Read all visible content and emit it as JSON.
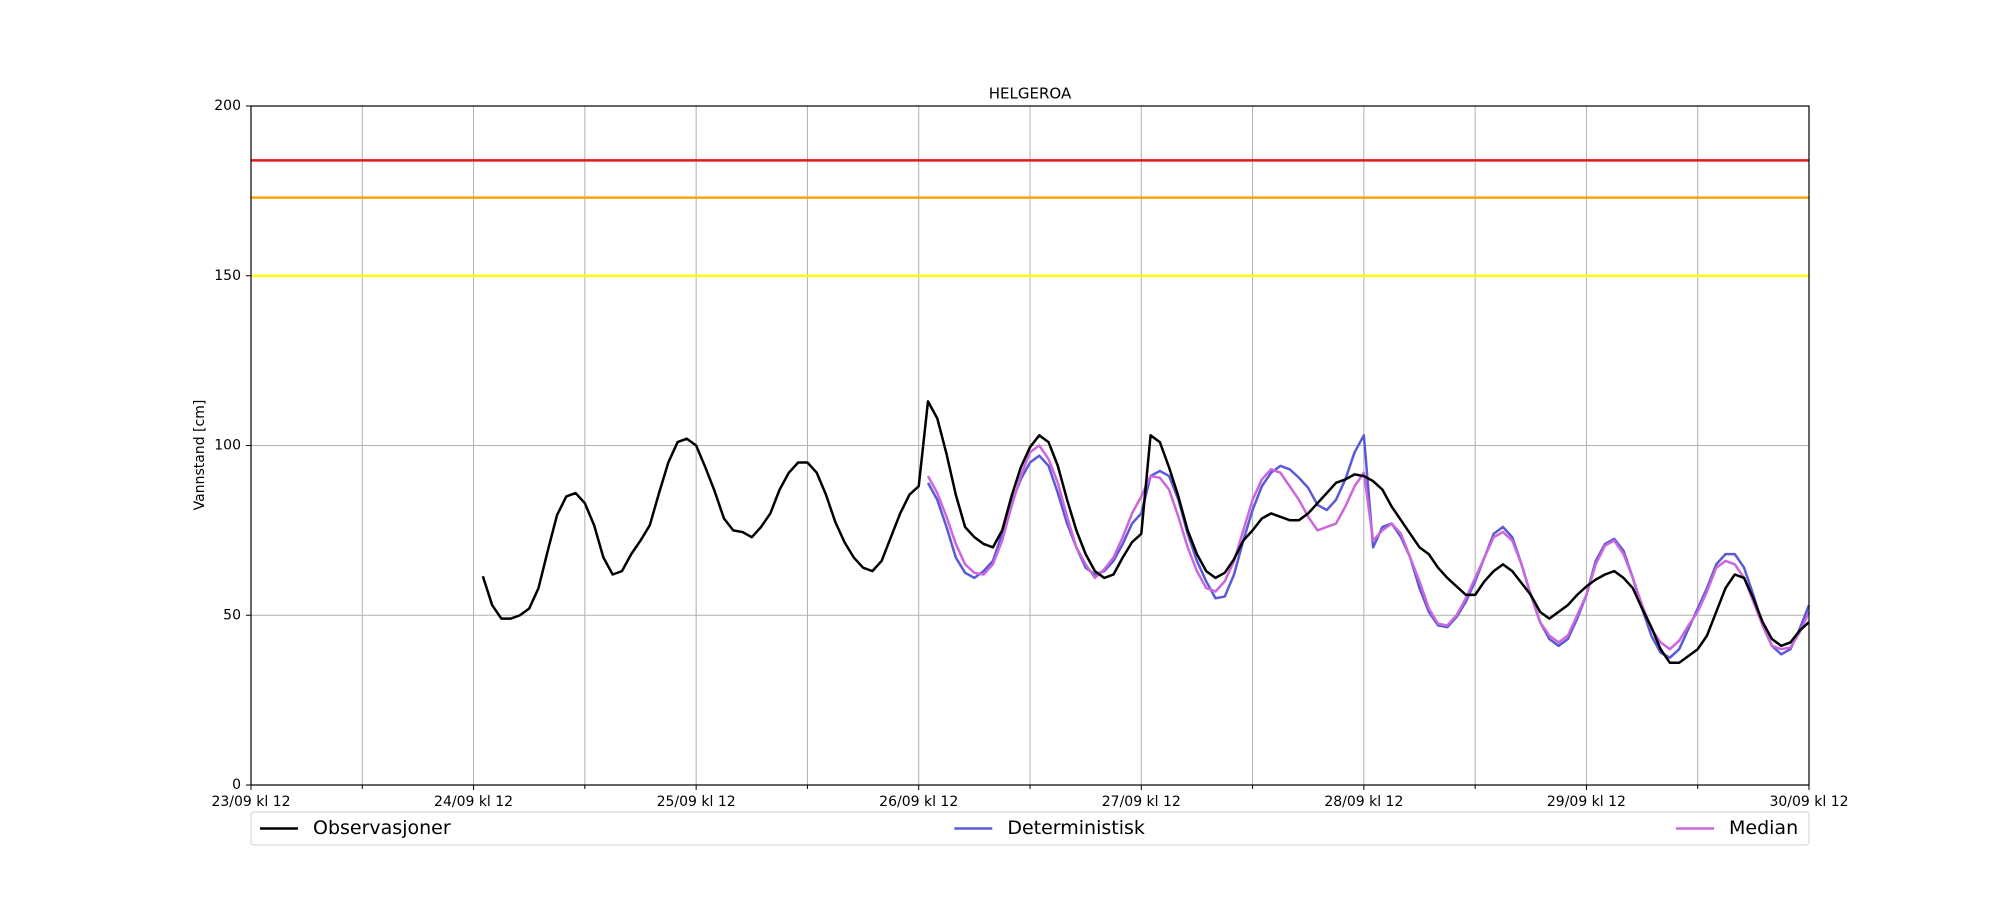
{
  "chart_data": {
    "type": "line",
    "title": "HELGEROA",
    "ylabel": "Vannstand [cm]",
    "xlim": [
      0,
      168
    ],
    "ylim": [
      0,
      200
    ],
    "yticks": [
      0,
      50,
      100,
      150,
      200
    ],
    "xticks": [
      {
        "value": 0,
        "label": "23/09 kl 12"
      },
      {
        "value": 24,
        "label": "24/09 kl 12"
      },
      {
        "value": 48,
        "label": "25/09 kl 12"
      },
      {
        "value": 72,
        "label": "26/09 kl 12"
      },
      {
        "value": 96,
        "label": "27/09 kl 12"
      },
      {
        "value": 120,
        "label": "28/09 kl 12"
      },
      {
        "value": 144,
        "label": "29/09 kl 12"
      },
      {
        "value": 168,
        "label": "30/09 kl 12"
      }
    ],
    "xticks_minor": [
      12,
      36,
      60,
      84,
      108,
      132,
      156
    ],
    "grid": true,
    "legend": "bottom",
    "thresholds": [
      {
        "value": 184,
        "color": "#e31a1c"
      },
      {
        "value": 173,
        "color": "#ffa500"
      },
      {
        "value": 150,
        "color": "#ffff00"
      }
    ],
    "series": [
      {
        "name": "Observasjoner",
        "color": "#000000",
        "x": [
          25,
          26,
          27,
          28,
          29,
          30,
          31,
          32,
          33,
          34,
          35,
          36,
          37,
          38,
          39,
          40,
          41,
          42,
          43,
          44,
          45,
          46,
          47,
          48,
          49,
          50,
          51,
          52,
          53,
          54,
          55,
          56,
          57,
          58,
          59,
          60,
          61,
          62,
          63,
          64,
          65,
          66,
          67,
          68,
          69,
          70,
          71,
          72,
          73,
          74,
          75,
          76,
          77,
          78,
          79,
          80,
          81,
          82,
          83,
          84,
          85,
          86,
          87,
          88,
          89,
          90,
          91,
          92,
          93,
          94,
          95,
          96,
          97,
          98,
          99,
          100,
          101,
          102,
          103,
          104,
          105,
          106,
          107,
          108,
          109,
          110,
          111,
          112,
          113,
          114,
          115,
          116,
          117,
          118,
          119,
          120,
          121,
          122,
          123,
          124,
          125,
          126,
          127,
          128,
          129,
          130,
          131,
          132,
          133,
          134,
          135,
          136,
          137,
          138,
          139,
          140,
          141,
          142,
          143,
          144,
          145,
          146,
          147,
          148,
          149,
          150,
          151,
          152,
          153,
          154,
          155,
          156,
          157,
          158,
          159,
          160,
          161,
          162,
          163,
          164,
          165,
          166,
          167,
          168
        ],
        "values": [
          61.5,
          53,
          49,
          49,
          50,
          52,
          58,
          69,
          79.5,
          85,
          86,
          83,
          76.5,
          67,
          62,
          63,
          68,
          72,
          76.5,
          86,
          95,
          101,
          102,
          100,
          93.5,
          86.5,
          78.5,
          75,
          74.5,
          73,
          76,
          80,
          87,
          92,
          95,
          95,
          92,
          85.5,
          77.5,
          71.5,
          67,
          64,
          63,
          66,
          73,
          80,
          85.5,
          88,
          113,
          108,
          97.5,
          85.5,
          76,
          73,
          71,
          70,
          75,
          85,
          93.5,
          99.5,
          103,
          101,
          94,
          84,
          75,
          68,
          63,
          61,
          62,
          67,
          71.5,
          74,
          103,
          101,
          93.5,
          85,
          75,
          68,
          63,
          61,
          62.5,
          66.5,
          72,
          75,
          78.5,
          80,
          79,
          78,
          78,
          80,
          83,
          86,
          89,
          90,
          91.5,
          91,
          89.5,
          87,
          82,
          78,
          74,
          70,
          68,
          64,
          61,
          58.5,
          56,
          56,
          60,
          63,
          65,
          63,
          59.5,
          56,
          51,
          49,
          51,
          53,
          56,
          58.5,
          60.5,
          62,
          63,
          61,
          58,
          52,
          46.5,
          40,
          36,
          36,
          38,
          40,
          44,
          51,
          58,
          62,
          61,
          55,
          48,
          43,
          41,
          42,
          45.5,
          48
        ]
      },
      {
        "name": "Deterministisk",
        "color": "#5a5ad6",
        "x": [
          73,
          74,
          75,
          76,
          77,
          78,
          79,
          80,
          81,
          82,
          83,
          84,
          85,
          86,
          87,
          88,
          89,
          90,
          91,
          92,
          93,
          94,
          95,
          96,
          97,
          98,
          99,
          100,
          101,
          102,
          103,
          104,
          105,
          106,
          107,
          108,
          109,
          110,
          111,
          112,
          113,
          114,
          115,
          116,
          117,
          118,
          119,
          120,
          121,
          122,
          123,
          124,
          125,
          126,
          127,
          128,
          129,
          130,
          131,
          132,
          133,
          134,
          135,
          136,
          137,
          138,
          139,
          140,
          141,
          142,
          143,
          144,
          145,
          146,
          147,
          148,
          149,
          150,
          151,
          152,
          153,
          154,
          155,
          156,
          157,
          158,
          159,
          160,
          161,
          162,
          163,
          164,
          165,
          166,
          167,
          168
        ],
        "values": [
          89,
          84,
          76,
          67,
          62.5,
          61,
          63,
          66,
          74,
          83,
          90,
          95,
          97,
          94,
          86,
          77,
          70,
          64,
          62,
          63,
          66,
          71,
          77,
          80,
          91,
          92.5,
          91,
          84,
          74,
          66,
          60,
          55,
          55.5,
          62,
          72,
          81,
          88,
          92,
          94,
          93,
          90.5,
          87.5,
          82.5,
          81,
          84,
          90,
          98,
          103,
          70,
          76,
          77,
          73,
          67,
          58,
          51,
          47,
          46.5,
          49.5,
          54,
          60,
          67,
          74,
          76,
          73,
          65,
          56,
          48,
          43,
          41,
          43,
          49,
          56,
          66,
          71,
          72.5,
          69,
          61,
          52,
          44,
          39,
          37.5,
          40,
          46,
          52,
          58,
          65,
          68,
          68,
          64,
          56,
          47,
          41,
          38.5,
          40,
          46,
          53
        ]
      },
      {
        "name": "Median",
        "color": "#cc66dd",
        "x": [
          73,
          74,
          75,
          76,
          77,
          78,
          79,
          80,
          81,
          82,
          83,
          84,
          85,
          86,
          87,
          88,
          89,
          90,
          91,
          92,
          93,
          94,
          95,
          96,
          97,
          98,
          99,
          100,
          101,
          102,
          103,
          104,
          105,
          106,
          107,
          108,
          109,
          110,
          111,
          112,
          113,
          114,
          115,
          116,
          117,
          118,
          119,
          120,
          121,
          122,
          123,
          124,
          125,
          126,
          127,
          128,
          129,
          130,
          131,
          132,
          133,
          134,
          135,
          136,
          137,
          138,
          139,
          140,
          141,
          142,
          143,
          144,
          145,
          146,
          147,
          148,
          149,
          150,
          151,
          152,
          153,
          154,
          155,
          156,
          157,
          158,
          159,
          160,
          161,
          162,
          163,
          164,
          165,
          166,
          167,
          168
        ],
        "values": [
          91,
          86,
          79,
          71,
          65,
          62.5,
          62,
          65,
          72,
          82,
          91,
          98,
          100,
          96,
          89,
          79,
          70,
          65,
          61,
          63.5,
          67,
          73,
          80,
          85,
          91,
          90.5,
          87,
          79,
          70,
          63,
          58,
          57,
          60,
          66,
          75,
          84,
          90,
          93,
          92,
          88,
          84,
          79,
          75,
          76,
          77,
          82,
          88,
          92,
          72,
          75,
          77,
          74,
          67,
          60,
          52,
          47.5,
          47,
          50,
          55,
          61,
          67,
          73,
          74.5,
          72,
          65,
          56,
          48,
          44,
          42,
          44,
          50,
          56,
          65,
          70.5,
          72,
          68,
          61,
          53,
          46,
          42,
          40,
          42.5,
          47,
          51,
          57,
          64,
          66,
          65,
          61,
          54,
          47,
          41,
          40,
          40.5,
          45,
          51
        ]
      }
    ]
  }
}
